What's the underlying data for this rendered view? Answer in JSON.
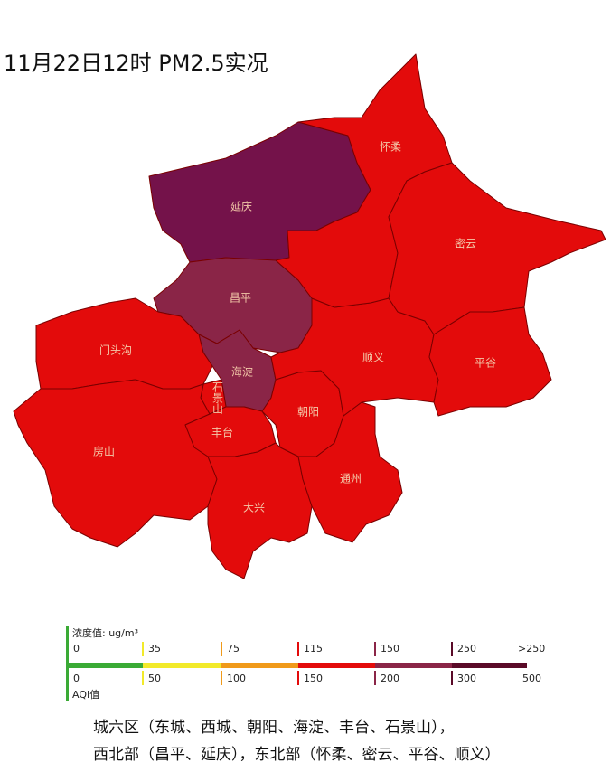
{
  "title": "11月22日12时 PM2.5实况",
  "districts": [
    {
      "name": "延庆",
      "color": "#74124a"
    },
    {
      "name": "昌平",
      "color": "#8a2547"
    },
    {
      "name": "海淀",
      "color": "#8a2547"
    },
    {
      "name": "门头沟",
      "color": "#e30b0b"
    },
    {
      "name": "石景山",
      "color": "#e30b0b"
    },
    {
      "name": "房山",
      "color": "#e30b0b"
    },
    {
      "name": "丰台",
      "color": "#e30b0b"
    },
    {
      "name": "朝阳",
      "color": "#e30b0b"
    },
    {
      "name": "大兴",
      "color": "#e30b0b"
    },
    {
      "name": "通州",
      "color": "#e30b0b"
    },
    {
      "name": "顺义",
      "color": "#e30b0b"
    },
    {
      "name": "怀柔",
      "color": "#e30b0b"
    },
    {
      "name": "密云",
      "color": "#e30b0b"
    },
    {
      "name": "平谷",
      "color": "#e30b0b"
    }
  ],
  "legend": {
    "concentration_label": "浓度值:  ug/m³",
    "concentration_ticks": [
      0,
      35,
      75,
      115,
      150,
      250,
      ">250"
    ],
    "aqi_label": "AQI值",
    "aqi_ticks": [
      0,
      50,
      100,
      150,
      200,
      300,
      500
    ],
    "colors": [
      "#3aaa35",
      "#f2ea2a",
      "#f09a1a",
      "#e30b0b",
      "#8a2547",
      "#5a0a28"
    ]
  },
  "footer": [
    "城六区（东城、西城、朝阳、海淀、丰台、石景山），",
    "西北部（昌平、延庆），东北部（怀柔、密云、平谷、顺义）"
  ]
}
